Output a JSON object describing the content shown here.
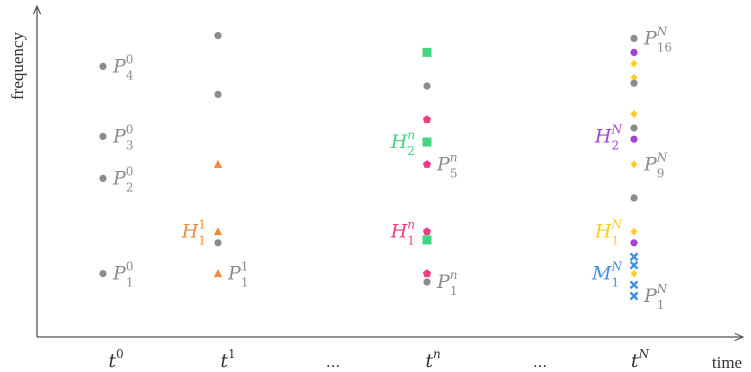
{
  "axes": {
    "x_label": "time",
    "y_label": "frequency",
    "x_ticks": [
      {
        "base": "t",
        "sup": "0",
        "kind": "tick"
      },
      {
        "base": "t",
        "sup": "1",
        "kind": "tick"
      },
      {
        "text": "...",
        "kind": "ellipsis"
      },
      {
        "base": "t",
        "sup": "n",
        "kind": "tick"
      },
      {
        "text": "...",
        "kind": "ellipsis"
      },
      {
        "base": "t",
        "sup": "N",
        "kind": "tick"
      }
    ]
  },
  "colors": {
    "point": "#8c8c8c",
    "h1_t1": "#f28a3c",
    "h1_tn": "#ee3d84",
    "h2_tn": "#3fd67f",
    "h1_tN": "#ffcc22",
    "h2_tN": "#a544d4",
    "m1_tN": "#3f8ee8",
    "axis": "#555555"
  },
  "columns": [
    {
      "id": "t0",
      "points": [
        {
          "shape": "circle",
          "color": "point",
          "freq": 0.87
        },
        {
          "shape": "circle",
          "color": "point",
          "freq": 0.62
        },
        {
          "shape": "circle",
          "color": "point",
          "freq": 0.47
        },
        {
          "shape": "circle",
          "color": "point",
          "freq": 0.13
        }
      ],
      "labels": [
        {
          "base": "P",
          "sup": "0",
          "sub": "4",
          "freq": 0.87,
          "side": "right",
          "color": "point"
        },
        {
          "base": "P",
          "sup": "0",
          "sub": "3",
          "freq": 0.62,
          "side": "right",
          "color": "point"
        },
        {
          "base": "P",
          "sup": "0",
          "sub": "2",
          "freq": 0.47,
          "side": "right",
          "color": "point"
        },
        {
          "base": "P",
          "sup": "0",
          "sub": "1",
          "freq": 0.13,
          "side": "right",
          "color": "point"
        }
      ]
    },
    {
      "id": "t1",
      "points": [
        {
          "shape": "circle",
          "color": "point",
          "freq": 0.98
        },
        {
          "shape": "circle",
          "color": "point",
          "freq": 0.77
        },
        {
          "shape": "triangle",
          "color": "h1_t1",
          "freq": 0.52
        },
        {
          "shape": "triangle",
          "color": "h1_t1",
          "freq": 0.28
        },
        {
          "shape": "circle",
          "color": "point",
          "freq": 0.24
        },
        {
          "shape": "triangle",
          "color": "h1_t1",
          "freq": 0.13
        }
      ],
      "labels": [
        {
          "base": "H",
          "sup": "1",
          "sub": "1",
          "freq": 0.28,
          "side": "left",
          "color": "h1_t1"
        },
        {
          "base": "P",
          "sup": "1",
          "sub": "1",
          "freq": 0.13,
          "side": "right",
          "color": "point"
        }
      ]
    },
    {
      "id": "tn",
      "points": [
        {
          "shape": "square",
          "color": "h2_tn",
          "freq": 0.92
        },
        {
          "shape": "circle",
          "color": "point",
          "freq": 0.8
        },
        {
          "shape": "pentagon",
          "color": "h1_tn",
          "freq": 0.68
        },
        {
          "shape": "square",
          "color": "h2_tn",
          "freq": 0.6
        },
        {
          "shape": "pentagon",
          "color": "h1_tn",
          "freq": 0.52
        },
        {
          "shape": "pentagon",
          "color": "h1_tn",
          "freq": 0.28
        },
        {
          "shape": "square",
          "color": "h2_tn",
          "freq": 0.25
        },
        {
          "shape": "pentagon",
          "color": "h1_tn",
          "freq": 0.13
        },
        {
          "shape": "circle",
          "color": "point",
          "freq": 0.1
        }
      ],
      "labels": [
        {
          "base": "H",
          "sup": "n",
          "sub": "2",
          "freq": 0.6,
          "side": "left",
          "color": "h2_tn"
        },
        {
          "base": "P",
          "sup": "n",
          "sub": "5",
          "freq": 0.52,
          "side": "right",
          "color": "point"
        },
        {
          "base": "H",
          "sup": "n",
          "sub": "1",
          "freq": 0.28,
          "side": "left",
          "color": "h1_tn"
        },
        {
          "base": "P",
          "sup": "n",
          "sub": "1",
          "freq": 0.1,
          "side": "right",
          "color": "point"
        }
      ]
    },
    {
      "id": "tN",
      "points": [
        {
          "shape": "circle",
          "color": "point",
          "freq": 0.97
        },
        {
          "shape": "circle",
          "color": "h2_tN",
          "freq": 0.92
        },
        {
          "shape": "diamond",
          "color": "h1_tN",
          "freq": 0.88
        },
        {
          "shape": "diamond",
          "color": "h1_tN",
          "freq": 0.83
        },
        {
          "shape": "circle",
          "color": "point",
          "freq": 0.81
        },
        {
          "shape": "diamond",
          "color": "h1_tN",
          "freq": 0.7
        },
        {
          "shape": "circle",
          "color": "point",
          "freq": 0.65
        },
        {
          "shape": "circle",
          "color": "h2_tN",
          "freq": 0.61
        },
        {
          "shape": "diamond",
          "color": "h1_tN",
          "freq": 0.52
        },
        {
          "shape": "circle",
          "color": "point",
          "freq": 0.4
        },
        {
          "shape": "diamond",
          "color": "h1_tN",
          "freq": 0.28
        },
        {
          "shape": "circle",
          "color": "h2_tN",
          "freq": 0.24
        },
        {
          "shape": "xcross",
          "color": "m1_tN",
          "freq": 0.19
        },
        {
          "shape": "xcross",
          "color": "m1_tN",
          "freq": 0.16
        },
        {
          "shape": "diamond",
          "color": "h1_tN",
          "freq": 0.13
        },
        {
          "shape": "xcross",
          "color": "m1_tN",
          "freq": 0.09
        },
        {
          "shape": "xcross",
          "color": "m1_tN",
          "freq": 0.05
        }
      ],
      "labels": [
        {
          "base": "P",
          "sup": "N",
          "sub": "16",
          "freq": 0.97,
          "side": "right",
          "color": "point"
        },
        {
          "base": "H",
          "sup": "N",
          "sub": "2",
          "freq": 0.62,
          "side": "left",
          "color": "h2_tN"
        },
        {
          "base": "P",
          "sup": "N",
          "sub": "9",
          "freq": 0.52,
          "side": "right",
          "color": "point"
        },
        {
          "base": "H",
          "sup": "N",
          "sub": "1",
          "freq": 0.28,
          "side": "left",
          "color": "h1_tN"
        },
        {
          "base": "M",
          "sup": "N",
          "sub": "1",
          "freq": 0.13,
          "side": "left",
          "color": "m1_tN"
        },
        {
          "base": "P",
          "sup": "N",
          "sub": "1",
          "freq": 0.05,
          "side": "right",
          "color": "point"
        }
      ]
    }
  ]
}
